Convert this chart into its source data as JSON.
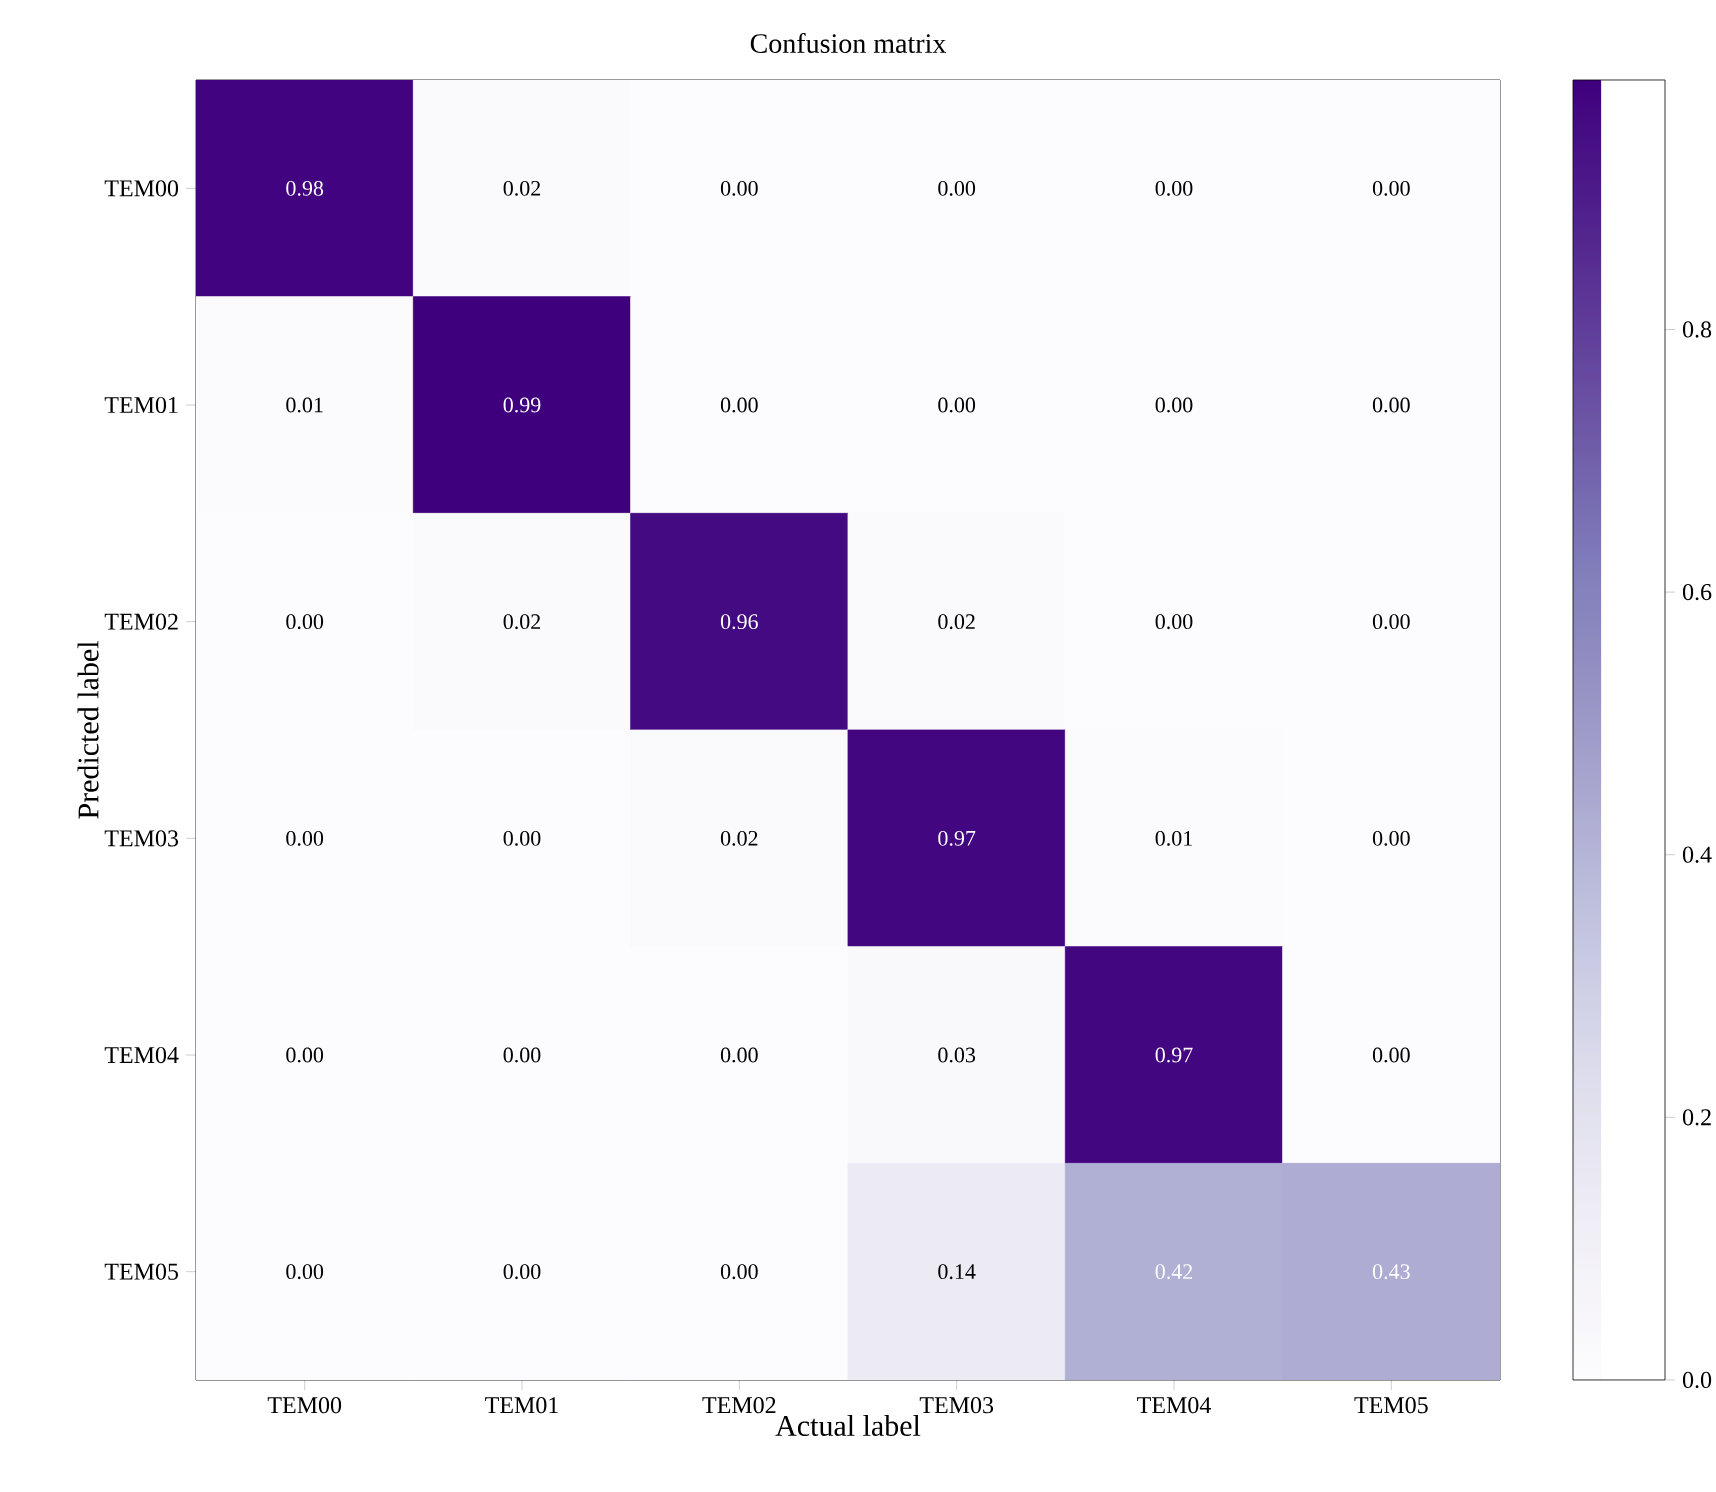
{
  "chart_data": {
    "type": "heatmap",
    "title": "Confusion matrix",
    "xlabel": "Actual label",
    "ylabel": "Predicted label",
    "categories": [
      "TEM00",
      "TEM01",
      "TEM02",
      "TEM03",
      "TEM04",
      "TEM05"
    ],
    "y_categories": [
      "TEM00",
      "TEM01",
      "TEM02",
      "TEM03",
      "TEM04",
      "TEM05"
    ],
    "cells": [
      [
        0.98,
        0.02,
        0.0,
        0.0,
        0.0,
        0.0
      ],
      [
        0.01,
        0.99,
        0.0,
        0.0,
        0.0,
        0.0
      ],
      [
        0.0,
        0.02,
        0.96,
        0.02,
        0.0,
        0.0
      ],
      [
        0.0,
        0.0,
        0.02,
        0.97,
        0.01,
        0.0
      ],
      [
        0.0,
        0.0,
        0.0,
        0.03,
        0.97,
        0.0
      ],
      [
        0.0,
        0.0,
        0.0,
        0.14,
        0.42,
        0.43
      ]
    ],
    "cell_labels": [
      [
        "0.98",
        "0.02",
        "0.00",
        "0.00",
        "0.00",
        "0.00"
      ],
      [
        "0.01",
        "0.99",
        "0.00",
        "0.00",
        "0.00",
        "0.00"
      ],
      [
        "0.00",
        "0.02",
        "0.96",
        "0.02",
        "0.00",
        "0.00"
      ],
      [
        "0.00",
        "0.00",
        "0.02",
        "0.97",
        "0.01",
        "0.00"
      ],
      [
        "0.00",
        "0.00",
        "0.00",
        "0.03",
        "0.97",
        "0.00"
      ],
      [
        "0.00",
        "0.00",
        "0.00",
        "0.14",
        "0.42",
        "0.43"
      ]
    ],
    "clim": [
      0,
      0.99
    ],
    "cticks": [
      {
        "value": 0,
        "label": "0.0"
      },
      {
        "value": 0.2,
        "label": "0.2"
      },
      {
        "value": 0.4,
        "label": "0.4"
      },
      {
        "value": 0.6,
        "label": "0.6"
      },
      {
        "value": 0.8,
        "label": "0.8"
      }
    ]
  }
}
